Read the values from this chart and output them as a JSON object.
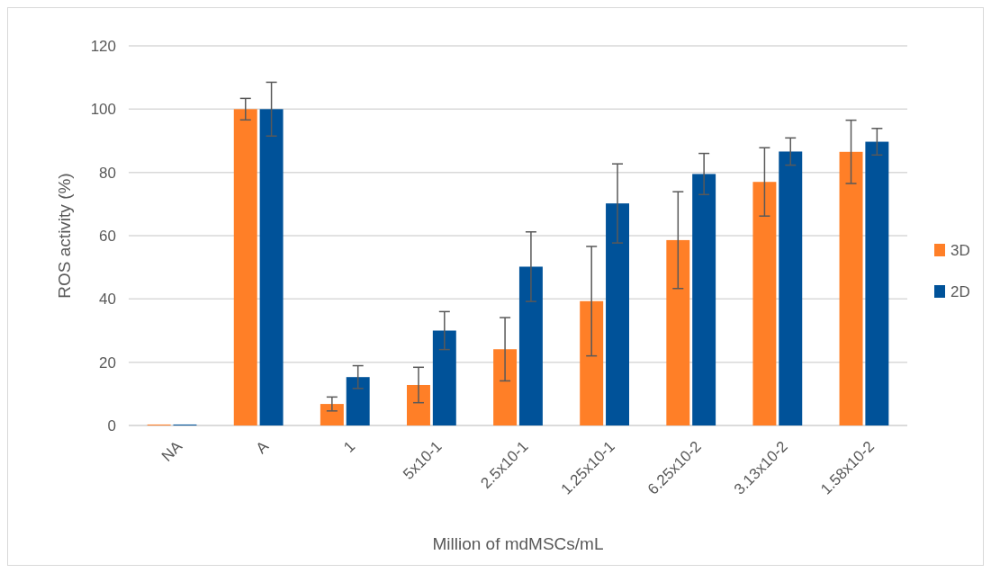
{
  "chart_data": {
    "type": "bar",
    "xlabel": "Million of mdMSCs/mL",
    "ylabel": "ROS activity (%)",
    "categories": [
      "NA",
      "A",
      "1",
      "5x10-1",
      "2.5x10-1",
      "1.25x10-1",
      "6.25x10-2",
      "3.13x10-2",
      "1.58x10-2"
    ],
    "series": [
      {
        "name": "3D",
        "color": "#ff7f27",
        "values": [
          0.3,
          100,
          6.8,
          12.8,
          24.1,
          39.3,
          58.6,
          77,
          86.5
        ],
        "errors": [
          null,
          3.4,
          2.2,
          5.6,
          10,
          17.3,
          15.3,
          10.8,
          10
        ]
      },
      {
        "name": "2D",
        "color": "#005299",
        "values": [
          0.3,
          100,
          15.3,
          30,
          50.2,
          70.2,
          79.5,
          86.6,
          89.7
        ],
        "errors": [
          null,
          8.5,
          3.6,
          6,
          11,
          12.5,
          6.5,
          4.3,
          4.2
        ]
      }
    ],
    "ylim": [
      0,
      120
    ],
    "yticks": [
      0,
      20,
      40,
      60,
      80,
      100,
      120
    ],
    "grid": "y",
    "legend": "right"
  }
}
